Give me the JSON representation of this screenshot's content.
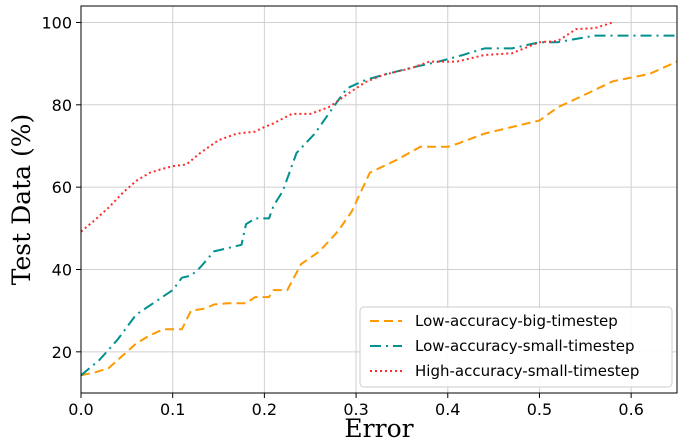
{
  "chart_data": {
    "type": "line",
    "title": "",
    "xlabel": "Error",
    "ylabel": "Test Data (%)",
    "xlim": [
      0.0,
      0.65
    ],
    "ylim": [
      10,
      104
    ],
    "xticks": [
      0.0,
      0.1,
      0.2,
      0.3,
      0.4,
      0.5,
      0.6
    ],
    "xtick_labels": [
      "0.0",
      "0.1",
      "0.2",
      "0.3",
      "0.4",
      "0.5",
      "0.6"
    ],
    "yticks": [
      20,
      40,
      60,
      80,
      100
    ],
    "ytick_labels": [
      "20",
      "40",
      "60",
      "80",
      "100"
    ],
    "grid": true,
    "legend_position": "bottom-right",
    "series": [
      {
        "name": "Low-accuracy-big-timestep",
        "color": "#ff9900",
        "dash": "dashed",
        "x": [
          0.0,
          0.015,
          0.03,
          0.045,
          0.06,
          0.075,
          0.09,
          0.11,
          0.12,
          0.135,
          0.145,
          0.16,
          0.18,
          0.19,
          0.205,
          0.21,
          0.225,
          0.24,
          0.26,
          0.28,
          0.295,
          0.315,
          0.345,
          0.37,
          0.4,
          0.41,
          0.44,
          0.47,
          0.5,
          0.52,
          0.55,
          0.58,
          0.62,
          0.65
        ],
        "y": [
          14.3,
          15,
          16,
          19,
          22,
          24,
          25.5,
          25.5,
          30,
          30.5,
          31.5,
          31.8,
          31.8,
          33.3,
          33.3,
          35,
          35,
          41.3,
          44.4,
          49.2,
          54,
          63.5,
          66.7,
          69.8,
          69.8,
          70.5,
          73,
          74.6,
          76.2,
          79.4,
          82.5,
          85.7,
          87.5,
          90.5
        ]
      },
      {
        "name": "Low-accuracy-small-timestep",
        "color": "#009090",
        "dash": "dashdot",
        "x": [
          0.0,
          0.02,
          0.04,
          0.06,
          0.08,
          0.1,
          0.11,
          0.12,
          0.13,
          0.145,
          0.16,
          0.175,
          0.18,
          0.19,
          0.205,
          0.21,
          0.22,
          0.235,
          0.255,
          0.275,
          0.29,
          0.31,
          0.33,
          0.36,
          0.39,
          0.415,
          0.44,
          0.47,
          0.5,
          0.52,
          0.56,
          0.6,
          0.65
        ],
        "y": [
          14.3,
          18,
          23,
          29,
          32,
          35,
          38,
          38.5,
          40.5,
          44.4,
          45.2,
          46,
          51,
          52.4,
          52.4,
          55.5,
          59,
          68.3,
          73,
          79.4,
          84,
          86,
          87.3,
          89,
          90.5,
          92,
          93.7,
          93.7,
          95.2,
          95.2,
          96.8,
          96.8,
          96.8
        ]
      },
      {
        "name": "High-accuracy-small-timestep",
        "color": "#ff2a2a",
        "dash": "dotted",
        "x": [
          0.0,
          0.015,
          0.03,
          0.045,
          0.06,
          0.075,
          0.09,
          0.1,
          0.115,
          0.13,
          0.15,
          0.17,
          0.19,
          0.2,
          0.21,
          0.23,
          0.25,
          0.27,
          0.29,
          0.31,
          0.33,
          0.36,
          0.38,
          0.41,
          0.44,
          0.47,
          0.5,
          0.52,
          0.54,
          0.56,
          0.58
        ],
        "y": [
          49.2,
          52,
          55,
          58.5,
          61.5,
          63.5,
          64.5,
          65.1,
          65.5,
          68.3,
          71.4,
          73,
          73.5,
          74.6,
          75.5,
          77.8,
          77.8,
          79.4,
          82.5,
          85.5,
          87.3,
          88.9,
          90.5,
          90.5,
          92.1,
          92.5,
          95.2,
          95.5,
          98.4,
          98.6,
          100
        ]
      }
    ]
  }
}
